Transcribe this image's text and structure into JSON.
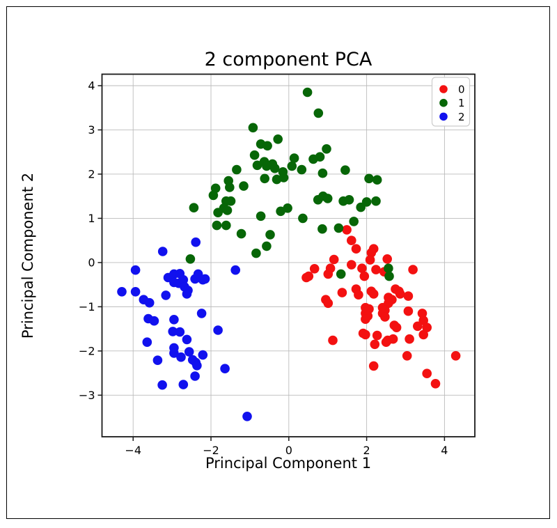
{
  "chart_data": {
    "type": "scatter",
    "title": "2 component PCA",
    "xlabel": "Principal Component 1",
    "ylabel": "Principal Component 2",
    "xlim": [
      -4.8,
      4.78
    ],
    "ylim": [
      -3.94,
      4.26
    ],
    "xticks": [
      -4,
      -2,
      0,
      2,
      4
    ],
    "yticks": [
      -3,
      -2,
      -1,
      0,
      1,
      2,
      3,
      4
    ],
    "grid": true,
    "grid_color": "#bbbbbb",
    "frame_color": "#1a1a1a",
    "legend_position": "upper right",
    "legend": [
      {
        "label": "0",
        "color": "#f31111"
      },
      {
        "label": "1",
        "color": "#076607"
      },
      {
        "label": "2",
        "color": "#1111ee"
      }
    ],
    "series": [
      {
        "name": "0",
        "color": "#f31111",
        "points": [
          [
            1.16,
            0.07
          ],
          [
            1.07,
            -0.13
          ],
          [
            0.66,
            -0.14
          ],
          [
            1.49,
            0.74
          ],
          [
            1.61,
            0.5
          ],
          [
            1.73,
            0.31
          ],
          [
            2.18,
            0.31
          ],
          [
            2.12,
            0.22
          ],
          [
            2.53,
            0.08
          ],
          [
            2.09,
            0.06
          ],
          [
            1.61,
            -0.05
          ],
          [
            1.88,
            -0.13
          ],
          [
            2.24,
            -0.16
          ],
          [
            3.19,
            -0.16
          ],
          [
            0.45,
            -0.34
          ],
          [
            0.51,
            -0.31
          ],
          [
            1.01,
            -0.26
          ],
          [
            1.94,
            -0.31
          ],
          [
            2.45,
            -0.21
          ],
          [
            1.37,
            -0.68
          ],
          [
            1.73,
            -0.6
          ],
          [
            1.79,
            -0.73
          ],
          [
            0.95,
            -0.84
          ],
          [
            1.01,
            -0.92
          ],
          [
            2.12,
            -0.65
          ],
          [
            2.18,
            -0.71
          ],
          [
            2.74,
            -0.6
          ],
          [
            2.83,
            -0.65
          ],
          [
            2.86,
            -0.71
          ],
          [
            3.07,
            -0.76
          ],
          [
            2.56,
            -0.79
          ],
          [
            2.65,
            -0.84
          ],
          [
            2.56,
            -0.92
          ],
          [
            1.97,
            -1.02
          ],
          [
            2.06,
            -1.05
          ],
          [
            2.41,
            -1.02
          ],
          [
            2.47,
            -1.08
          ],
          [
            2.41,
            -1.15
          ],
          [
            2.47,
            -1.23
          ],
          [
            1.97,
            -1.15
          ],
          [
            2.03,
            -1.21
          ],
          [
            1.97,
            -1.28
          ],
          [
            3.07,
            -1.1
          ],
          [
            3.43,
            -1.15
          ],
          [
            3.46,
            -1.31
          ],
          [
            2.71,
            -1.42
          ],
          [
            2.77,
            -1.47
          ],
          [
            3.31,
            -1.44
          ],
          [
            3.55,
            -1.47
          ],
          [
            1.91,
            -1.6
          ],
          [
            1.97,
            -1.63
          ],
          [
            2.27,
            -1.65
          ],
          [
            2.54,
            -1.76
          ],
          [
            2.68,
            -1.73
          ],
          [
            1.13,
            -1.76
          ],
          [
            3.1,
            -1.73
          ],
          [
            3.46,
            -1.63
          ],
          [
            2.21,
            -1.85
          ],
          [
            2.5,
            -1.8
          ],
          [
            3.04,
            -2.11
          ],
          [
            4.29,
            -2.11
          ],
          [
            2.18,
            -2.34
          ],
          [
            3.55,
            -2.51
          ],
          [
            3.77,
            -2.74
          ]
        ]
      },
      {
        "name": "1",
        "color": "#076607",
        "points": [
          [
            0.48,
            3.85
          ],
          [
            0.76,
            3.38
          ],
          [
            -0.92,
            3.05
          ],
          [
            -0.28,
            2.79
          ],
          [
            -0.72,
            2.68
          ],
          [
            -0.55,
            2.64
          ],
          [
            -0.88,
            2.43
          ],
          [
            0.97,
            2.57
          ],
          [
            0.8,
            2.39
          ],
          [
            0.63,
            2.34
          ],
          [
            0.14,
            2.36
          ],
          [
            0.08,
            2.18
          ],
          [
            -0.81,
            2.2
          ],
          [
            -0.63,
            2.28
          ],
          [
            -0.42,
            2.23
          ],
          [
            -0.57,
            2.18
          ],
          [
            -0.36,
            2.13
          ],
          [
            -1.34,
            2.1
          ],
          [
            -0.15,
            2.05
          ],
          [
            0.33,
            2.1
          ],
          [
            0.87,
            2.02
          ],
          [
            1.45,
            2.09
          ],
          [
            -1.55,
            1.85
          ],
          [
            -0.62,
            1.9
          ],
          [
            -0.31,
            1.88
          ],
          [
            -0.13,
            1.92
          ],
          [
            2.06,
            1.9
          ],
          [
            2.27,
            1.87
          ],
          [
            -2.44,
            1.24
          ],
          [
            -1.94,
            1.52
          ],
          [
            -1.88,
            1.68
          ],
          [
            -1.52,
            1.7
          ],
          [
            -1.61,
            1.39
          ],
          [
            -1.49,
            1.39
          ],
          [
            -1.67,
            1.23
          ],
          [
            -1.58,
            1.18
          ],
          [
            -1.82,
            1.13
          ],
          [
            -1.16,
            1.73
          ],
          [
            -0.21,
            1.16
          ],
          [
            -0.03,
            1.23
          ],
          [
            -0.72,
            1.05
          ],
          [
            0.36,
            1.0
          ],
          [
            0.75,
            1.42
          ],
          [
            0.88,
            1.5
          ],
          [
            1.0,
            1.45
          ],
          [
            1.4,
            1.39
          ],
          [
            1.55,
            1.42
          ],
          [
            1.85,
            1.25
          ],
          [
            2.0,
            1.37
          ],
          [
            2.24,
            1.39
          ],
          [
            0.86,
            0.76
          ],
          [
            1.28,
            0.78
          ],
          [
            1.67,
            0.93
          ],
          [
            -1.85,
            0.84
          ],
          [
            -1.61,
            0.84
          ],
          [
            -1.22,
            0.65
          ],
          [
            -0.48,
            0.63
          ],
          [
            -0.57,
            0.37
          ],
          [
            -0.84,
            0.21
          ],
          [
            -2.53,
            0.08
          ],
          [
            2.56,
            -0.13
          ],
          [
            2.58,
            -0.31
          ],
          [
            1.34,
            -0.26
          ]
        ]
      },
      {
        "name": "2",
        "color": "#1111ee",
        "points": [
          [
            -2.39,
            0.46
          ],
          [
            -3.24,
            0.25
          ],
          [
            -3.94,
            -0.17
          ],
          [
            -4.29,
            -0.66
          ],
          [
            -3.94,
            -0.66
          ],
          [
            -3.1,
            -0.34
          ],
          [
            -2.95,
            -0.26
          ],
          [
            -2.8,
            -0.25
          ],
          [
            -2.95,
            -0.45
          ],
          [
            -2.83,
            -0.47
          ],
          [
            -2.71,
            -0.39
          ],
          [
            -2.68,
            -0.55
          ],
          [
            -2.59,
            -0.63
          ],
          [
            -2.41,
            -0.37
          ],
          [
            -2.33,
            -0.26
          ],
          [
            -2.21,
            -0.39
          ],
          [
            -2.15,
            -0.37
          ],
          [
            -2.62,
            -0.71
          ],
          [
            -3.73,
            -0.84
          ],
          [
            -3.58,
            -0.91
          ],
          [
            -3.16,
            -0.74
          ],
          [
            -1.37,
            -0.17
          ],
          [
            -2.24,
            -1.15
          ],
          [
            -3.61,
            -1.27
          ],
          [
            -3.46,
            -1.32
          ],
          [
            -2.95,
            -1.29
          ],
          [
            -2.98,
            -1.56
          ],
          [
            -2.8,
            -1.57
          ],
          [
            -1.82,
            -1.53
          ],
          [
            -3.64,
            -1.8
          ],
          [
            -2.62,
            -1.74
          ],
          [
            -2.95,
            -1.93
          ],
          [
            -2.95,
            -2.05
          ],
          [
            -2.56,
            -2.02
          ],
          [
            -2.77,
            -2.14
          ],
          [
            -2.21,
            -2.09
          ],
          [
            -3.37,
            -2.21
          ],
          [
            -2.47,
            -2.2
          ],
          [
            -2.39,
            -2.26
          ],
          [
            -2.36,
            -2.33
          ],
          [
            -1.64,
            -2.4
          ],
          [
            -2.41,
            -2.57
          ],
          [
            -3.25,
            -2.77
          ],
          [
            -2.71,
            -2.76
          ],
          [
            -1.07,
            -3.48
          ]
        ]
      }
    ]
  }
}
